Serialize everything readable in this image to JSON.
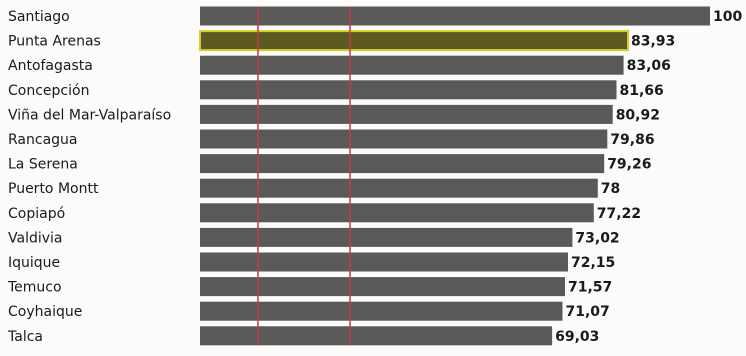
{
  "chart_data": {
    "type": "bar",
    "orientation": "horizontal",
    "categories": [
      "Santiago",
      "Punta Arenas",
      "Antofagasta",
      "Concepción",
      "Viña del Mar-Valparaíso",
      "Rancagua",
      "La Serena",
      "Puerto Montt",
      "Copiapó",
      "Valdivia",
      "Iquique",
      "Temuco",
      "Coyhaique",
      "Talca"
    ],
    "values": [
      100,
      83.93,
      83.06,
      81.66,
      80.92,
      79.86,
      79.26,
      78,
      77.22,
      73.02,
      72.15,
      71.57,
      71.07,
      69.03
    ],
    "value_labels": [
      "100",
      "83,93",
      "83,06",
      "81,66",
      "80,92",
      "79,86",
      "79,26",
      "78",
      "77,22",
      "73,02",
      "72,15",
      "71,57",
      "71,07",
      "69,03"
    ],
    "highlighted_category": "Punta Arenas",
    "title": "",
    "xlabel": "",
    "ylabel": "",
    "xlim": [
      0,
      100
    ],
    "grid": false,
    "colors": {
      "bar": "#595959",
      "highlight_bar": "#5c5a22",
      "highlight_outline": "#d6cc2a",
      "reference_line": "#c43a4a",
      "text": "#1a1a1a"
    }
  }
}
